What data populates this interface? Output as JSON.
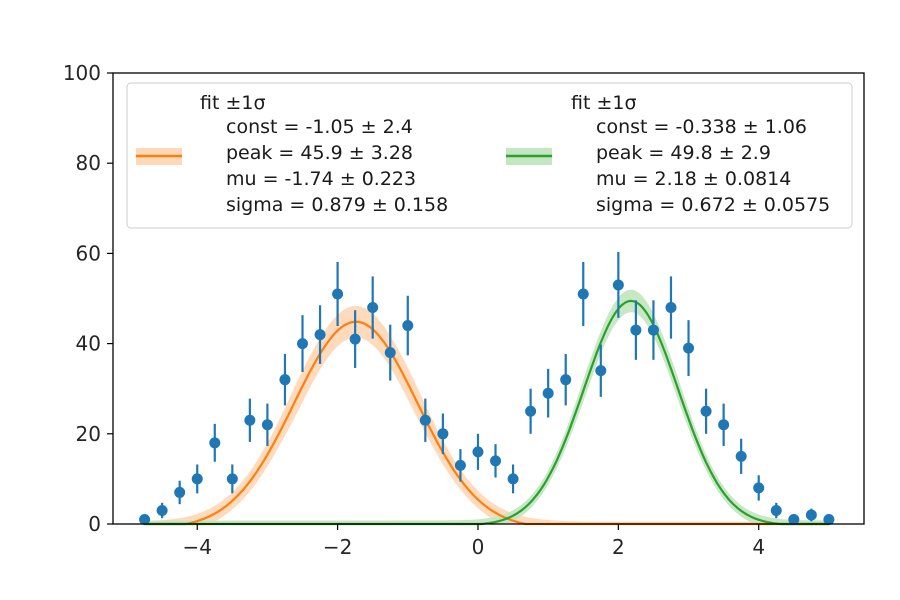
{
  "chart_data": {
    "type": "scatter",
    "title": "",
    "xlabel": "",
    "ylabel": "",
    "xlim": [
      -5.2,
      5.5
    ],
    "ylim": [
      0,
      100
    ],
    "xticks": [
      -4,
      -2,
      0,
      2,
      4
    ],
    "xtick_labels": [
      "−4",
      "−2",
      "0",
      "2",
      "4"
    ],
    "yticks": [
      0,
      20,
      40,
      60,
      80,
      100
    ],
    "ytick_labels": [
      "0",
      "20",
      "40",
      "60",
      "80",
      "100"
    ],
    "grid": false,
    "legend_position": "top",
    "colors": {
      "data": "#1f77b4",
      "fit1": "#ff7f0e",
      "fit1_band": "#ffd8b8",
      "fit2": "#2ca02c",
      "fit2_band": "#c4e6c2"
    },
    "data_points": {
      "x": [
        -4.75,
        -4.5,
        -4.25,
        -4.0,
        -3.75,
        -3.5,
        -3.25,
        -3.0,
        -2.75,
        -2.5,
        -2.25,
        -2.0,
        -1.75,
        -1.5,
        -1.25,
        -1.0,
        -0.75,
        -0.5,
        -0.25,
        0.0,
        0.25,
        0.5,
        0.75,
        1.0,
        1.25,
        1.5,
        1.75,
        2.0,
        2.25,
        2.5,
        2.75,
        3.0,
        3.25,
        3.5,
        3.75,
        4.0,
        4.25,
        4.5,
        4.75,
        5.0
      ],
      "y": [
        1,
        3,
        7,
        10,
        18,
        10,
        23,
        22,
        32,
        40,
        42,
        51,
        41,
        48,
        38,
        44,
        23,
        20,
        13,
        16,
        14,
        10,
        25,
        29,
        32,
        51,
        34,
        53,
        43,
        43,
        48,
        39,
        25,
        22,
        15,
        8,
        3,
        1,
        2,
        1
      ],
      "yerr": [
        1,
        1.7,
        2.6,
        3.2,
        4.2,
        3.2,
        4.8,
        4.7,
        5.7,
        6.3,
        6.5,
        7.1,
        6.4,
        6.9,
        6.2,
        6.6,
        4.8,
        4.5,
        3.6,
        4,
        3.7,
        3.2,
        5,
        5.4,
        5.7,
        7.1,
        5.8,
        7.3,
        6.6,
        6.6,
        6.9,
        6.2,
        5,
        4.7,
        3.9,
        2.8,
        1.7,
        1,
        1.4,
        1
      ]
    },
    "fits": [
      {
        "legend_title": "fit ±1σ",
        "params": [
          "const = -1.05 ± 2.4",
          "peak = 45.9 ± 3.28",
          "mu = -1.74 ± 0.223",
          "sigma = 0.879 ± 0.158"
        ],
        "const": -1.05,
        "peak": 45.9,
        "mu": -1.74,
        "sigma": 0.879,
        "band_halfwidth": 3.5
      },
      {
        "legend_title": "fit ±1σ",
        "params": [
          "const = -0.338 ± 1.06",
          "peak = 49.8 ± 2.9",
          "mu = 2.18 ± 0.0814",
          "sigma = 0.672 ± 0.0575"
        ],
        "const": -0.338,
        "peak": 49.8,
        "mu": 2.18,
        "sigma": 0.672,
        "band_halfwidth": 2.5
      }
    ]
  }
}
